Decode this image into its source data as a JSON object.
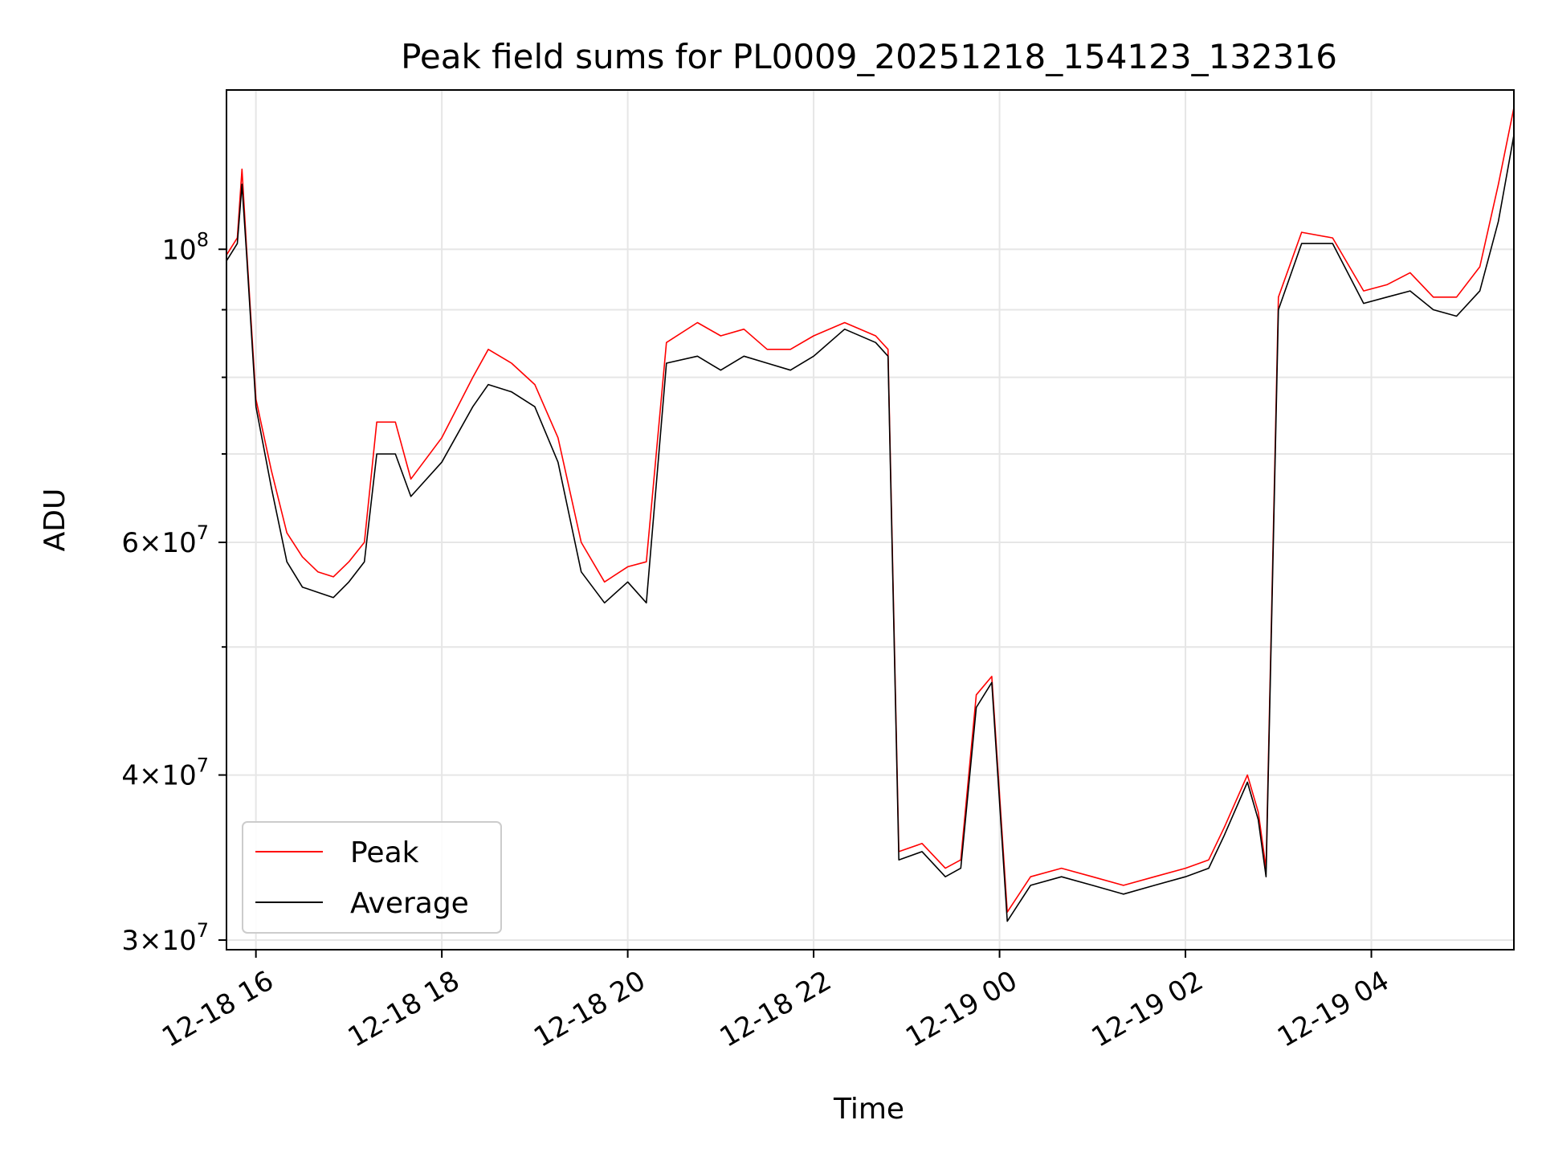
{
  "chart_data": {
    "type": "line",
    "title": "Peak field sums for PL0009_20251218_154123_132316",
    "xlabel": "Time",
    "ylabel": "ADU",
    "y_scale": "log",
    "ylim": [
      29500000,
      132000000
    ],
    "xlim": [
      "2025-12-18 15:41",
      "2025-12-19 05:32"
    ],
    "grid": true,
    "legend_position": "lower-left",
    "x_ticks": [
      {
        "value": "2025-12-18 16:00",
        "label": "12-18 16"
      },
      {
        "value": "2025-12-18 18:00",
        "label": "12-18 18"
      },
      {
        "value": "2025-12-18 20:00",
        "label": "12-18 20"
      },
      {
        "value": "2025-12-18 22:00",
        "label": "12-18 22"
      },
      {
        "value": "2025-12-19 00:00",
        "label": "12-19 00"
      },
      {
        "value": "2025-12-19 02:00",
        "label": "12-19 02"
      },
      {
        "value": "2025-12-19 04:00",
        "label": "12-19 04"
      }
    ],
    "y_ticks": [
      {
        "value": 30000000,
        "base": "3",
        "exp": "7"
      },
      {
        "value": 40000000,
        "base": "4",
        "exp": "7"
      },
      {
        "value": 60000000,
        "base": "6",
        "exp": "7"
      },
      {
        "value": 100000000,
        "base": "",
        "exp": "8"
      }
    ],
    "y_minor_ticks": [
      50000000,
      70000000,
      80000000,
      90000000
    ],
    "series": [
      {
        "name": "Peak",
        "color": "#ff0000",
        "x": [
          "2025-12-18 15:41",
          "2025-12-18 15:48",
          "2025-12-18 15:51",
          "2025-12-18 15:54",
          "2025-12-18 16:00",
          "2025-12-18 16:10",
          "2025-12-18 16:20",
          "2025-12-18 16:30",
          "2025-12-18 16:40",
          "2025-12-18 16:50",
          "2025-12-18 17:00",
          "2025-12-18 17:10",
          "2025-12-18 17:18",
          "2025-12-18 17:30",
          "2025-12-18 17:40",
          "2025-12-18 18:00",
          "2025-12-18 18:20",
          "2025-12-18 18:30",
          "2025-12-18 18:45",
          "2025-12-18 19:00",
          "2025-12-18 19:15",
          "2025-12-18 19:30",
          "2025-12-18 19:45",
          "2025-12-18 20:00",
          "2025-12-18 20:12",
          "2025-12-18 20:25",
          "2025-12-18 20:45",
          "2025-12-18 21:00",
          "2025-12-18 21:15",
          "2025-12-18 21:30",
          "2025-12-18 21:45",
          "2025-12-18 22:00",
          "2025-12-18 22:20",
          "2025-12-18 22:40",
          "2025-12-18 22:48",
          "2025-12-18 22:55",
          "2025-12-18 23:10",
          "2025-12-18 23:25",
          "2025-12-18 23:35",
          "2025-12-18 23:45",
          "2025-12-18 23:55",
          "2025-12-19 00:05",
          "2025-12-19 00:20",
          "2025-12-19 00:40",
          "2025-12-19 01:00",
          "2025-12-19 01:20",
          "2025-12-19 01:40",
          "2025-12-19 02:00",
          "2025-12-19 02:15",
          "2025-12-19 02:25",
          "2025-12-19 02:40",
          "2025-12-19 02:47",
          "2025-12-19 02:52",
          "2025-12-19 03:00",
          "2025-12-19 03:15",
          "2025-12-19 03:35",
          "2025-12-19 03:55",
          "2025-12-19 04:10",
          "2025-12-19 04:25",
          "2025-12-19 04:40",
          "2025-12-19 04:55",
          "2025-12-19 05:10",
          "2025-12-19 05:22",
          "2025-12-19 05:32"
        ],
        "y": [
          99000000,
          102000000,
          115000000,
          100000000,
          77000000,
          68000000,
          61000000,
          58500000,
          57000000,
          56500000,
          58000000,
          60000000,
          74000000,
          74000000,
          67000000,
          72000000,
          80000000,
          84000000,
          82000000,
          79000000,
          72000000,
          60000000,
          56000000,
          57500000,
          58000000,
          85000000,
          88000000,
          86000000,
          87000000,
          84000000,
          84000000,
          86000000,
          88000000,
          86000000,
          84000000,
          35000000,
          35500000,
          34000000,
          34500000,
          46000000,
          47500000,
          31500000,
          33500000,
          34000000,
          33500000,
          33000000,
          33500000,
          34000000,
          34500000,
          36500000,
          40000000,
          37500000,
          34000000,
          92000000,
          103000000,
          102000000,
          93000000,
          94000000,
          96000000,
          92000000,
          92000000,
          97000000,
          112000000,
          128000000
        ]
      },
      {
        "name": "Average",
        "color": "#000000",
        "x": [
          "2025-12-18 15:41",
          "2025-12-18 15:48",
          "2025-12-18 15:51",
          "2025-12-18 15:54",
          "2025-12-18 16:00",
          "2025-12-18 16:10",
          "2025-12-18 16:20",
          "2025-12-18 16:30",
          "2025-12-18 16:40",
          "2025-12-18 16:50",
          "2025-12-18 17:00",
          "2025-12-18 17:10",
          "2025-12-18 17:18",
          "2025-12-18 17:30",
          "2025-12-18 17:40",
          "2025-12-18 18:00",
          "2025-12-18 18:20",
          "2025-12-18 18:30",
          "2025-12-18 18:45",
          "2025-12-18 19:00",
          "2025-12-18 19:15",
          "2025-12-18 19:30",
          "2025-12-18 19:45",
          "2025-12-18 20:00",
          "2025-12-18 20:12",
          "2025-12-18 20:25",
          "2025-12-18 20:45",
          "2025-12-18 21:00",
          "2025-12-18 21:15",
          "2025-12-18 21:30",
          "2025-12-18 21:45",
          "2025-12-18 22:00",
          "2025-12-18 22:20",
          "2025-12-18 22:40",
          "2025-12-18 22:48",
          "2025-12-18 22:55",
          "2025-12-18 23:10",
          "2025-12-18 23:25",
          "2025-12-18 23:35",
          "2025-12-18 23:45",
          "2025-12-18 23:55",
          "2025-12-19 00:05",
          "2025-12-19 00:20",
          "2025-12-19 00:40",
          "2025-12-19 01:00",
          "2025-12-19 01:20",
          "2025-12-19 01:40",
          "2025-12-19 02:00",
          "2025-12-19 02:15",
          "2025-12-19 02:25",
          "2025-12-19 02:40",
          "2025-12-19 02:47",
          "2025-12-19 02:52",
          "2025-12-19 03:00",
          "2025-12-19 03:15",
          "2025-12-19 03:35",
          "2025-12-19 03:55",
          "2025-12-19 04:10",
          "2025-12-19 04:25",
          "2025-12-19 04:40",
          "2025-12-19 04:55",
          "2025-12-19 05:10",
          "2025-12-19 05:22",
          "2025-12-19 05:32"
        ],
        "y": [
          98000000,
          101000000,
          112000000,
          99000000,
          76000000,
          66000000,
          58000000,
          55500000,
          55000000,
          54500000,
          56000000,
          58000000,
          70000000,
          70000000,
          65000000,
          69000000,
          76000000,
          79000000,
          78000000,
          76000000,
          69000000,
          57000000,
          54000000,
          56000000,
          54000000,
          82000000,
          83000000,
          81000000,
          83000000,
          82000000,
          81000000,
          83000000,
          87000000,
          85000000,
          83000000,
          34500000,
          35000000,
          33500000,
          34000000,
          45000000,
          47000000,
          31000000,
          33000000,
          33500000,
          33000000,
          32500000,
          33000000,
          33500000,
          34000000,
          36000000,
          39500000,
          37000000,
          33500000,
          90000000,
          101000000,
          101000000,
          91000000,
          92000000,
          93000000,
          90000000,
          89000000,
          93000000,
          105000000,
          122000000
        ]
      }
    ]
  }
}
